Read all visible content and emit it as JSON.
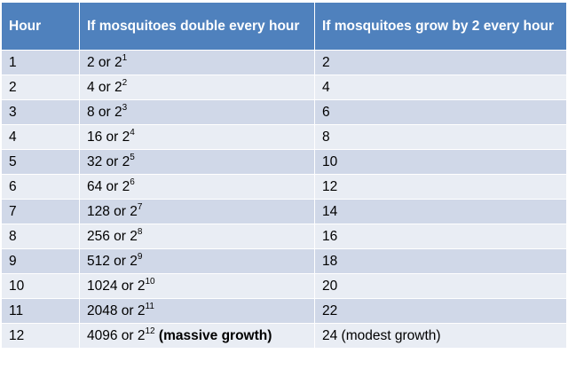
{
  "table": {
    "headers": [
      "Hour",
      "If mosquitoes double every hour",
      "If mosquitoes grow by 2 every hour"
    ],
    "rows": [
      {
        "hour": "1",
        "double_value": "2",
        "connector": " or 2",
        "exponent": "1",
        "double_note": "",
        "linear": "2"
      },
      {
        "hour": "2",
        "double_value": "4",
        "connector": " or 2",
        "exponent": "2",
        "double_note": "",
        "linear": "4"
      },
      {
        "hour": "3",
        "double_value": "8",
        "connector": " or 2",
        "exponent": "3",
        "double_note": "",
        "linear": "6"
      },
      {
        "hour": "4",
        "double_value": "16",
        "connector": " or 2",
        "exponent": "4",
        "double_note": "",
        "linear": "8"
      },
      {
        "hour": "5",
        "double_value": "32",
        "connector": " or 2",
        "exponent": "5",
        "double_note": "",
        "linear": "10"
      },
      {
        "hour": "6",
        "double_value": "64",
        "connector": " or 2",
        "exponent": "6",
        "double_note": "",
        "linear": "12"
      },
      {
        "hour": "7",
        "double_value": "128",
        "connector": " or 2",
        "exponent": "7",
        "double_note": "",
        "linear": "14"
      },
      {
        "hour": "8",
        "double_value": "256",
        "connector": " or 2",
        "exponent": "8",
        "double_note": "",
        "linear": "16"
      },
      {
        "hour": "9",
        "double_value": "512",
        "connector": " or 2",
        "exponent": "9",
        "double_note": "",
        "linear": "18"
      },
      {
        "hour": "10",
        "double_value": "1024",
        "connector": " or 2",
        "exponent": "10",
        "double_note": "",
        "linear": "20"
      },
      {
        "hour": "11",
        "double_value": "2048",
        "connector": " or 2",
        "exponent": "11",
        "double_note": "",
        "linear": "22"
      },
      {
        "hour": "12",
        "double_value": "4096",
        "connector": " or 2",
        "exponent": "12",
        "double_note": " (massive growth)",
        "linear": "24 (modest growth)"
      }
    ]
  },
  "colors": {
    "header_bg": "#4f81bd",
    "row_odd_bg": "#d0d8e8",
    "row_even_bg": "#e9edf4"
  }
}
